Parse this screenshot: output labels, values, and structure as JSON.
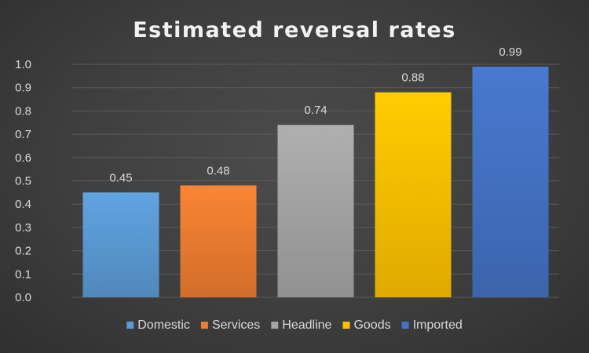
{
  "chart_data": {
    "type": "bar",
    "title": "Estimated reversal rates",
    "categories": [
      "Domestic",
      "Services",
      "Headline",
      "Goods",
      "Imported"
    ],
    "values": [
      0.45,
      0.48,
      0.74,
      0.88,
      0.99
    ],
    "data_labels": [
      "0.45",
      "0.48",
      "0.74",
      "0.88",
      "0.99"
    ],
    "colors": [
      "#5b9bd5",
      "#ed7d31",
      "#a5a5a5",
      "#ffc000",
      "#4472c4"
    ],
    "xlabel": "",
    "ylabel": "",
    "ylim": [
      0,
      1.0
    ],
    "yticks": [
      0.0,
      0.1,
      0.2,
      0.3,
      0.4,
      0.5,
      0.6,
      0.7,
      0.8,
      0.9,
      1.0
    ],
    "ytick_labels": [
      "0.0",
      "0.1",
      "0.2",
      "0.3",
      "0.4",
      "0.5",
      "0.6",
      "0.7",
      "0.8",
      "0.9",
      "1.0"
    ],
    "grid": true,
    "legend_position": "bottom"
  }
}
